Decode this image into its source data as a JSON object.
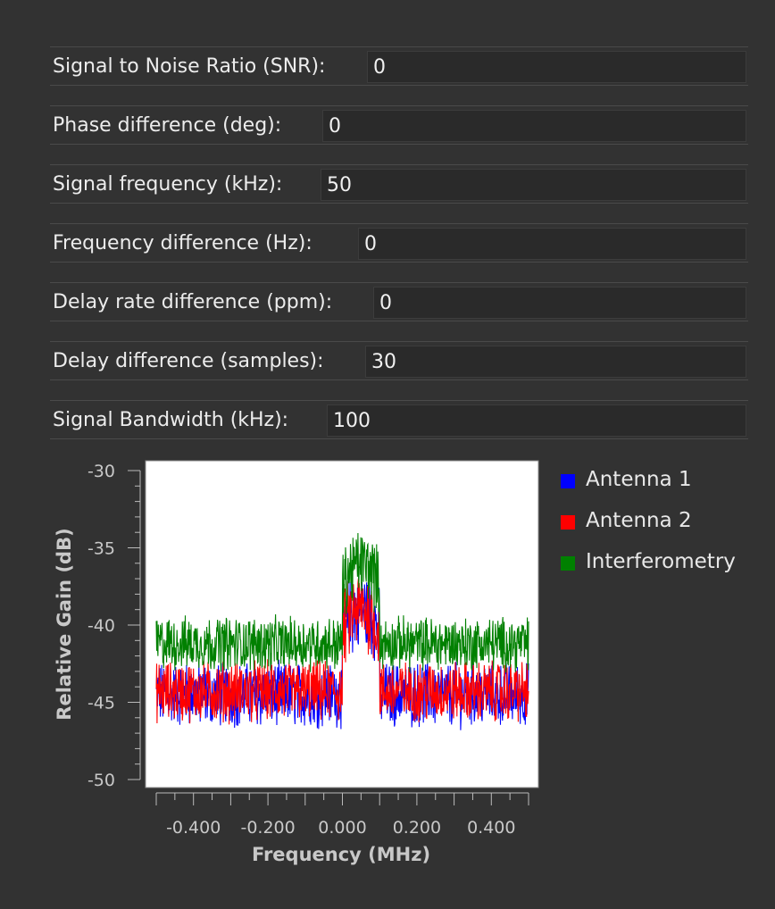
{
  "params": [
    {
      "label": "Signal to Noise Ratio (SNR):",
      "value": "0"
    },
    {
      "label": "Phase difference (deg):",
      "value": "0"
    },
    {
      "label": "Signal frequency (kHz):",
      "value": "50"
    },
    {
      "label": "Frequency difference (Hz):",
      "value": "0"
    },
    {
      "label": "Delay rate difference (ppm):",
      "value": "0"
    },
    {
      "label": "Delay difference (samples):",
      "value": "30"
    },
    {
      "label": "Signal Bandwidth (kHz):",
      "value": "100"
    }
  ],
  "chart_data": {
    "type": "line",
    "xlabel": "Frequency (MHz)",
    "ylabel": "Relative Gain (dB)",
    "xlim": [
      -0.5,
      0.5
    ],
    "ylim": [
      -50,
      -30
    ],
    "x_ticks": [
      "-0.400",
      "-0.200",
      "0.000",
      "0.200",
      "0.400"
    ],
    "y_ticks": [
      "-30",
      "-35",
      "-40",
      "-45",
      "-50"
    ],
    "background": "#ffffff",
    "legend_position": "right",
    "series": [
      {
        "name": "Antenna 1",
        "color": "#0000ff",
        "noise_floor_db": -44.5,
        "noise_spread_db": 1.8,
        "signal_band_mhz": [
          0.0,
          0.1
        ],
        "signal_level_db": -40.5
      },
      {
        "name": "Antenna 2",
        "color": "#ff0000",
        "noise_floor_db": -44.3,
        "noise_spread_db": 1.7,
        "signal_band_mhz": [
          0.0,
          0.1
        ],
        "signal_level_db": -40.5
      },
      {
        "name": "Interferometry",
        "color": "#008000",
        "noise_floor_db": -41.2,
        "noise_spread_db": 1.5,
        "signal_band_mhz": [
          0.0,
          0.1
        ],
        "signal_level_db": -37.5
      }
    ]
  }
}
